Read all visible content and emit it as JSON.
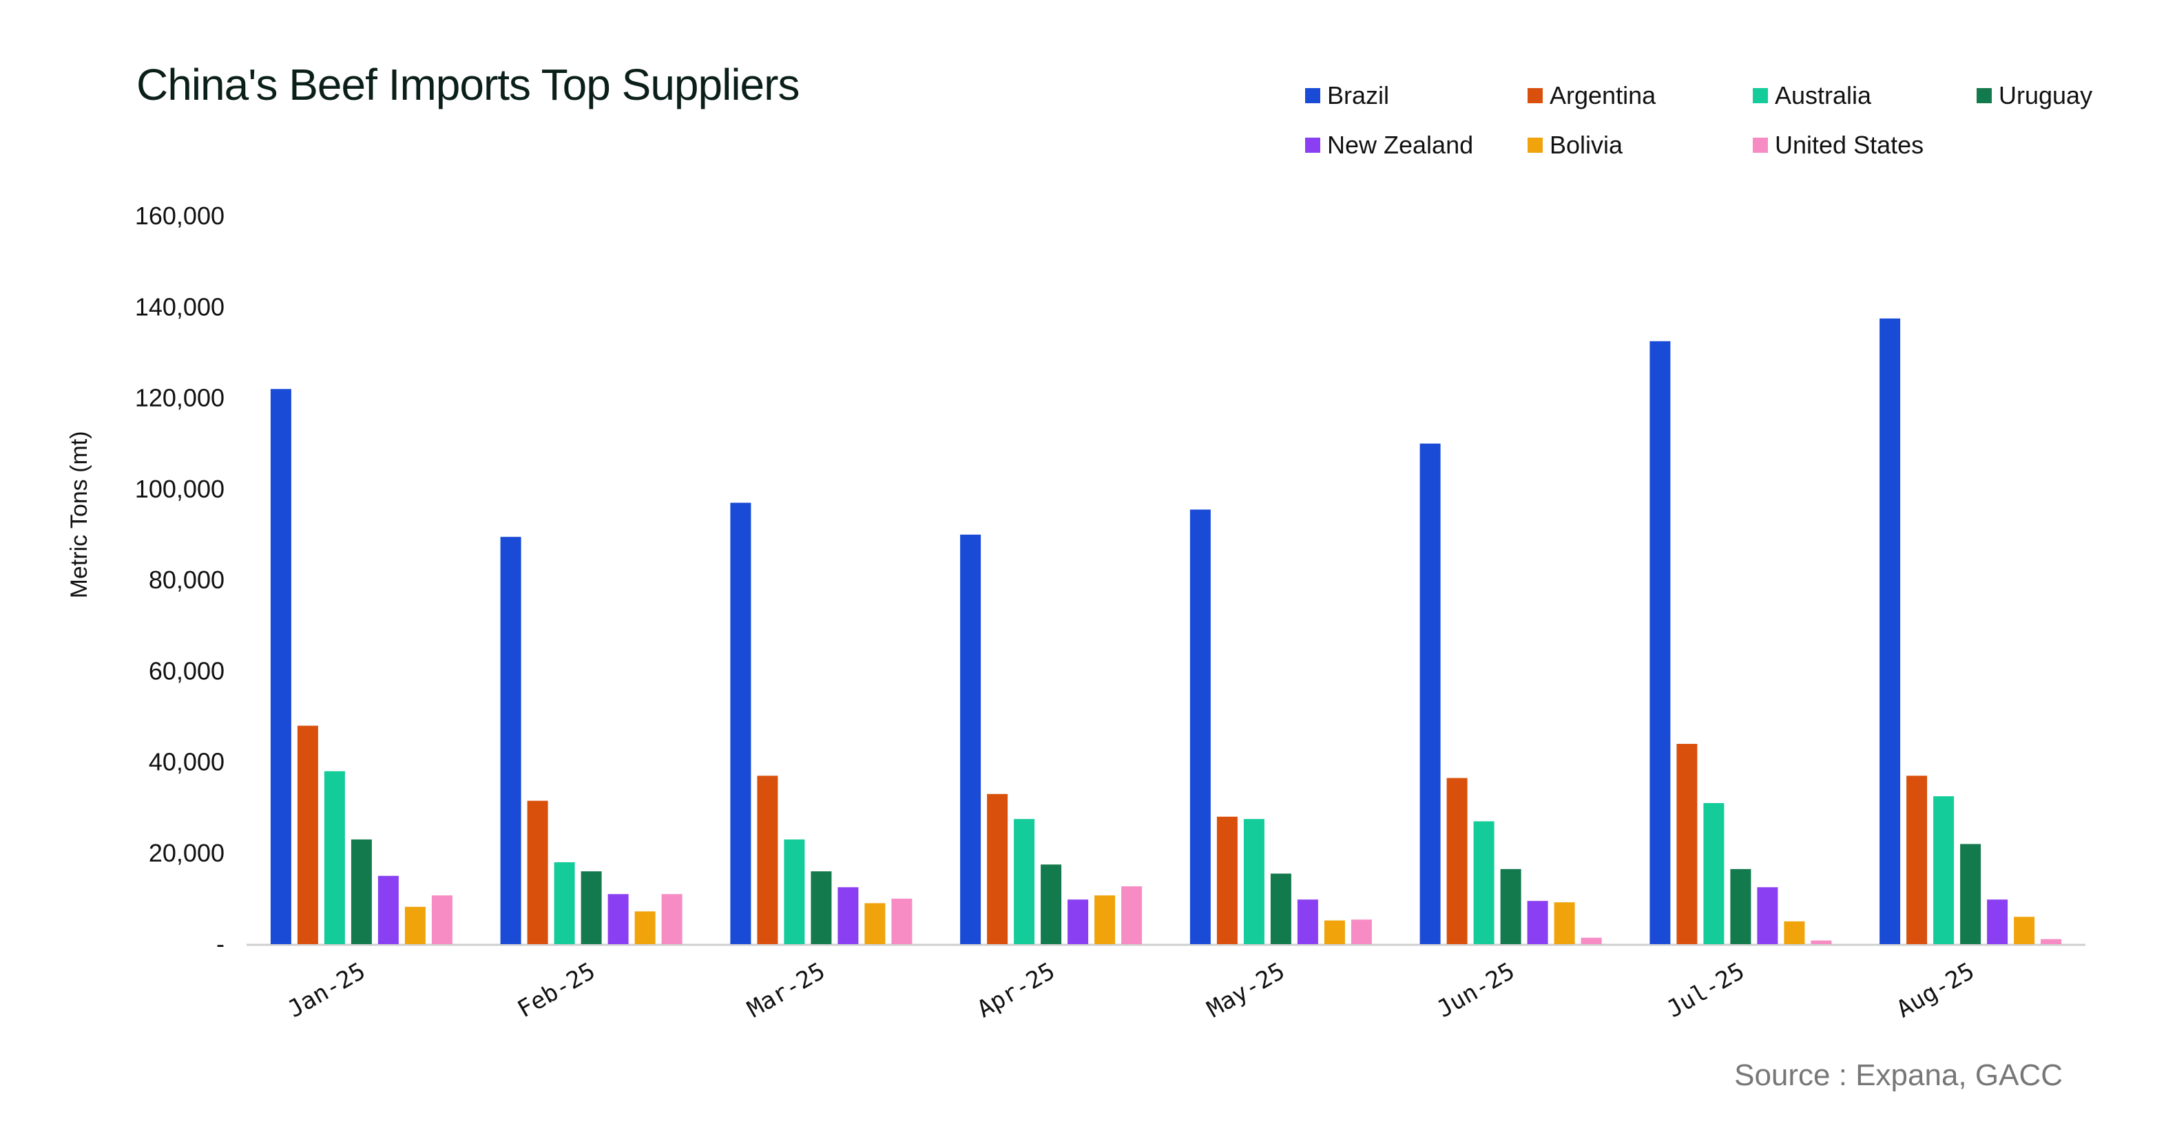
{
  "chart_data": {
    "type": "bar",
    "title": "China's Beef Imports Top Suppliers",
    "ylabel": "Metric Tons (mt)",
    "xlabel": "",
    "ylim": [
      0,
      160000
    ],
    "yticks": [
      0,
      20000,
      40000,
      60000,
      80000,
      100000,
      120000,
      140000,
      160000
    ],
    "ytick_labels": [
      "-",
      "20,000",
      "40,000",
      "60,000",
      "80,000",
      "100,000",
      "120,000",
      "140,000",
      "160,000"
    ],
    "grid": false,
    "legend_position": "top-right",
    "categories": [
      "Jan-25",
      "Feb-25",
      "Mar-25",
      "Apr-25",
      "May-25",
      "Jun-25",
      "Jul-25",
      "Aug-25"
    ],
    "series": [
      {
        "name": "Brazil",
        "color": "#1a4bd6",
        "values": [
          122000,
          89500,
          97000,
          90000,
          95500,
          110000,
          132500,
          137500
        ]
      },
      {
        "name": "Argentina",
        "color": "#d94f0c",
        "values": [
          48000,
          31500,
          37000,
          33000,
          28000,
          36500,
          44000,
          37000
        ]
      },
      {
        "name": "Australia",
        "color": "#14cc99",
        "values": [
          38000,
          18000,
          23000,
          27500,
          27500,
          27000,
          31000,
          32500
        ]
      },
      {
        "name": "Uruguay",
        "color": "#137a4d",
        "values": [
          23000,
          16000,
          16000,
          17500,
          15500,
          16500,
          16500,
          22000
        ]
      },
      {
        "name": "New Zealand",
        "color": "#8a3ff2",
        "values": [
          15000,
          11000,
          12500,
          9800,
          9800,
          9500,
          12500,
          9800
        ]
      },
      {
        "name": "Bolivia",
        "color": "#f0a30a",
        "values": [
          8200,
          7200,
          9000,
          10700,
          5200,
          9200,
          5000,
          6000
        ]
      },
      {
        "name": "United States",
        "color": "#f78bc4",
        "values": [
          10700,
          11000,
          10000,
          12700,
          5400,
          1400,
          800,
          1100
        ]
      }
    ],
    "source": "Source : Expana, GACC"
  }
}
